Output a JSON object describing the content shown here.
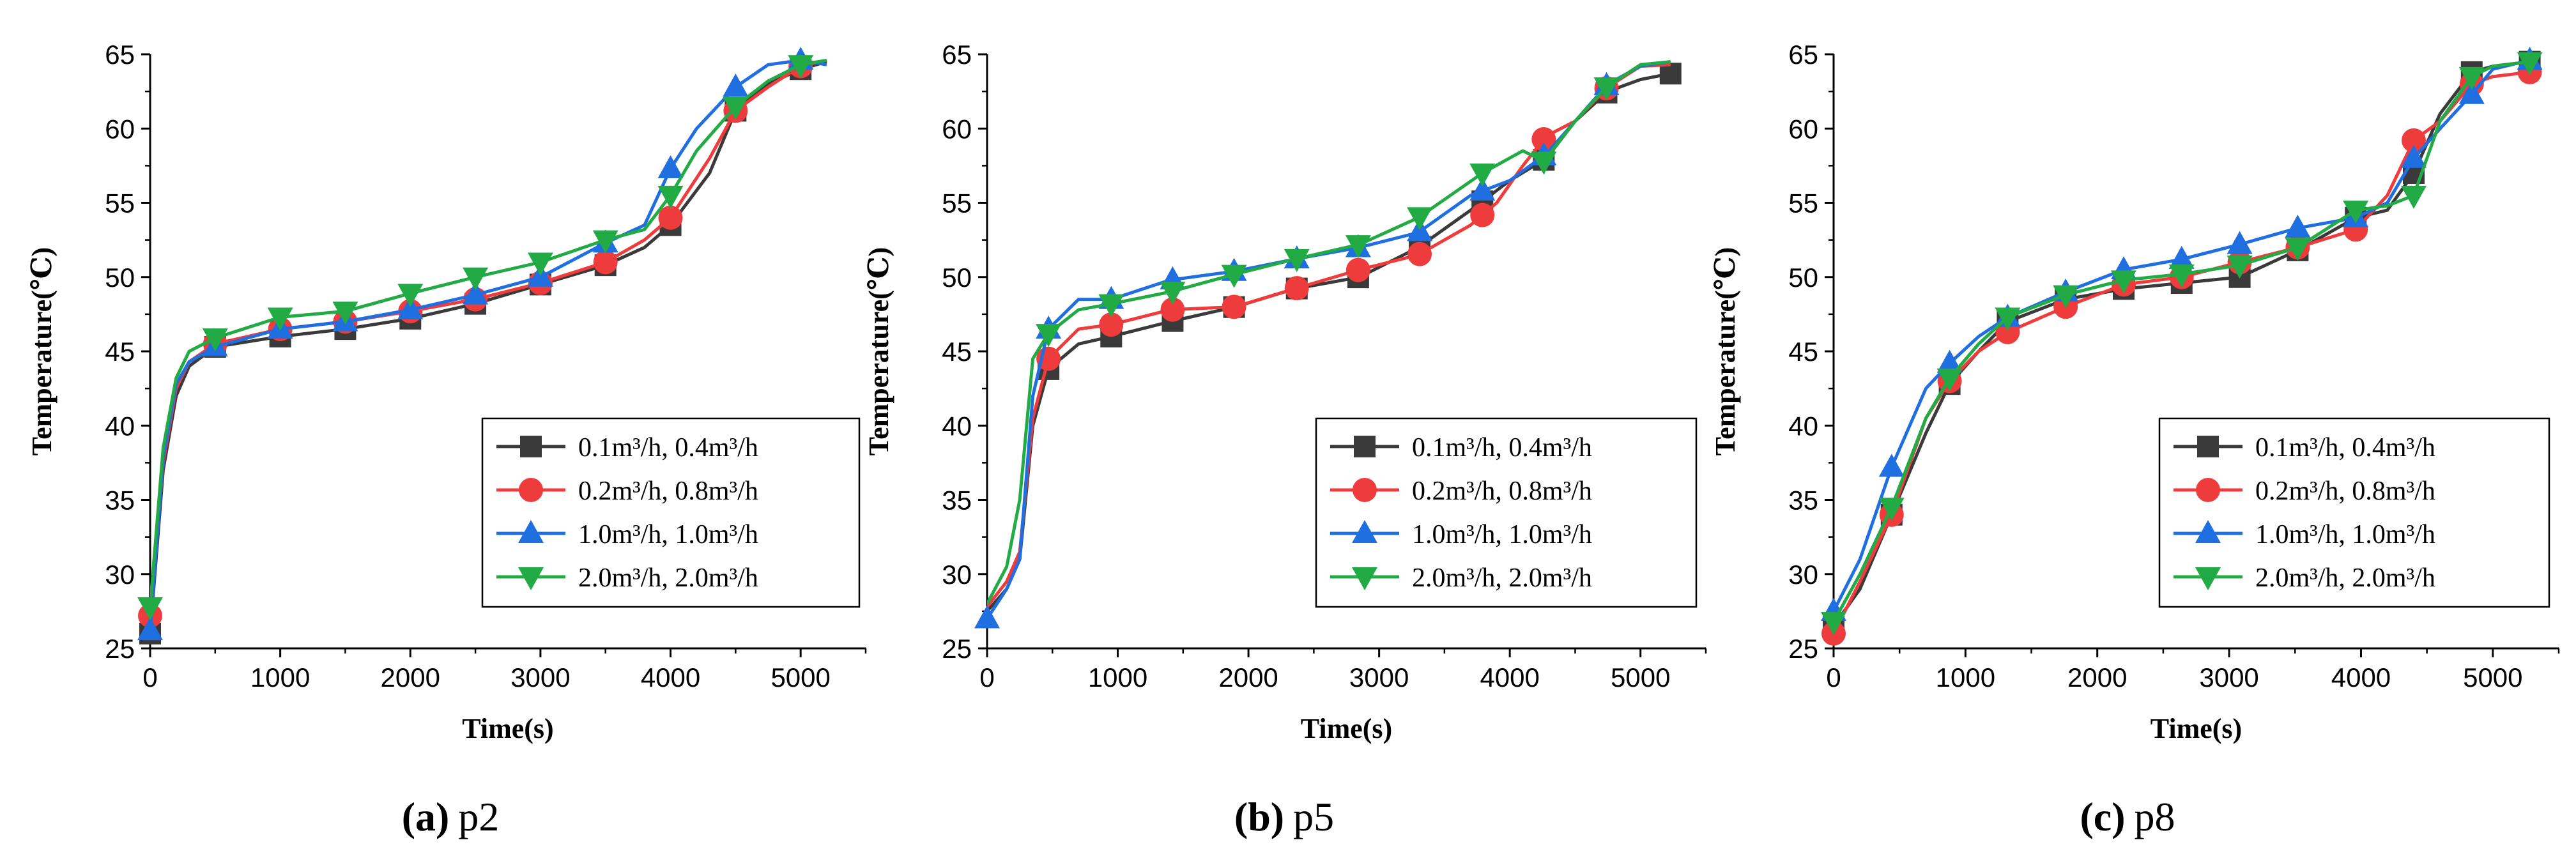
{
  "chart_data": [
    {
      "type": "line",
      "panel": "a",
      "title": "p2",
      "xlabel": "Time(s)",
      "ylabel": "Temperature(℃)",
      "xlim": [
        0,
        5500
      ],
      "ylim": [
        25,
        65
      ],
      "xticks": [
        0,
        1000,
        2000,
        3000,
        4000,
        5000
      ],
      "yticks": [
        25,
        30,
        35,
        40,
        45,
        50,
        55,
        60,
        65
      ],
      "legend_position": "bottom-right",
      "series": [
        {
          "name": "0.1m³/h, 0.4m³/h",
          "color": "#3a3a3a",
          "marker": "square",
          "x": [
            0,
            100,
            200,
            300,
            500,
            1000,
            1500,
            2000,
            2500,
            3000,
            3500,
            3800,
            4000,
            4300,
            4500,
            4750,
            5000,
            5200
          ],
          "y": [
            26,
            37,
            42,
            44,
            45.3,
            46,
            46.5,
            47.2,
            48.2,
            49.5,
            50.8,
            52,
            53.5,
            57,
            61.2,
            63,
            64,
            64.5
          ],
          "marker_x": [
            0,
            500,
            1000,
            1500,
            2000,
            2500,
            3000,
            3500,
            4000,
            4500,
            5000
          ]
        },
        {
          "name": "0.2m³/h, 0.8m³/h",
          "color": "#ee3b3b",
          "marker": "circle",
          "x": [
            0,
            100,
            200,
            300,
            500,
            1000,
            1500,
            2000,
            2500,
            3000,
            3500,
            3800,
            4000,
            4300,
            4500,
            4750,
            5000,
            5200
          ],
          "y": [
            27.2,
            37.5,
            42.5,
            44.3,
            45.5,
            46.5,
            47,
            47.7,
            48.5,
            49.6,
            51,
            52.5,
            54,
            58,
            61.2,
            62.8,
            64.2,
            64.6
          ],
          "marker_x": [
            0,
            500,
            1000,
            1500,
            2000,
            2500,
            3000,
            3500,
            4000,
            4500,
            5000
          ]
        },
        {
          "name": "1.0m³/h, 1.0m³/h",
          "color": "#1f6fe0",
          "marker": "triangle-up",
          "x": [
            0,
            100,
            200,
            300,
            500,
            1000,
            1500,
            2000,
            2500,
            3000,
            3500,
            3800,
            4000,
            4200,
            4500,
            4750,
            5000,
            5200
          ],
          "y": [
            26.2,
            37.8,
            42.8,
            44.3,
            45.3,
            46.5,
            47,
            47.8,
            48.8,
            50,
            52.3,
            53.5,
            57.3,
            60,
            62.8,
            64.3,
            64.6,
            64.3
          ],
          "marker_x": [
            0,
            500,
            1000,
            1500,
            2000,
            2500,
            3000,
            3500,
            4000,
            4500,
            5000
          ]
        },
        {
          "name": "2.0m³/h, 2.0m³/h",
          "color": "#22aa44",
          "marker": "triangle-down",
          "x": [
            0,
            100,
            200,
            300,
            500,
            1000,
            1500,
            2000,
            2500,
            3000,
            3500,
            3800,
            4000,
            4200,
            4500,
            4750,
            5000,
            5200
          ],
          "y": [
            27.8,
            38.5,
            43.2,
            45,
            45.9,
            47.3,
            47.7,
            48.9,
            50,
            51,
            52.5,
            53.2,
            55.5,
            58.5,
            61.5,
            63.2,
            64.3,
            64.6
          ],
          "marker_x": [
            0,
            500,
            1000,
            1500,
            2000,
            2500,
            3000,
            3500,
            4000,
            4500,
            5000
          ]
        }
      ]
    },
    {
      "type": "line",
      "panel": "b",
      "title": "p5",
      "xlabel": "Time(s)",
      "ylabel": "Temperature(℃)",
      "xlim": [
        0,
        5500
      ],
      "ylim": [
        25,
        65
      ],
      "xticks": [
        0,
        1000,
        2000,
        3000,
        4000,
        5000
      ],
      "yticks": [
        25,
        30,
        35,
        40,
        45,
        50,
        55,
        60,
        65
      ],
      "legend_position": "bottom-right",
      "series": [
        {
          "name": "0.1m³/h, 0.4m³/h",
          "color": "#3a3a3a",
          "marker": "square",
          "x": [
            0,
            150,
            250,
            350,
            470,
            700,
            950,
            1400,
            1900,
            2350,
            2850,
            3300,
            3700,
            4000,
            4280,
            4500,
            4750,
            5000,
            5230
          ],
          "y": [
            27.5,
            29,
            31,
            40,
            43.8,
            45.5,
            46,
            47,
            48,
            49.2,
            50,
            52,
            54.5,
            56.5,
            58,
            60.5,
            62.5,
            63.3,
            63.7
          ],
          "marker_x": [
            470,
            950,
            1420,
            1890,
            2370,
            2840,
            3310,
            3790,
            4260,
            4740,
            5230
          ]
        },
        {
          "name": "0.2m³/h, 0.8m³/h",
          "color": "#ee3b3b",
          "marker": "circle",
          "x": [
            0,
            150,
            250,
            350,
            470,
            700,
            950,
            1400,
            1900,
            2350,
            2850,
            3300,
            3700,
            3900,
            4100,
            4280,
            4500,
            4750,
            5000,
            5230
          ],
          "y": [
            27.8,
            29.5,
            31.5,
            40.5,
            44.5,
            46.5,
            46.8,
            47.8,
            48,
            49.2,
            50.5,
            51.5,
            53.5,
            55,
            57.5,
            59.5,
            60.5,
            62.8,
            64.2,
            64.3
          ],
          "marker_x": [
            470,
            950,
            1420,
            1890,
            2370,
            2840,
            3310,
            3790,
            4260,
            4740
          ]
        },
        {
          "name": "1.0m³/h, 1.0m³/h",
          "color": "#1f6fe0",
          "marker": "triangle-up",
          "x": [
            0,
            150,
            250,
            350,
            470,
            700,
            950,
            1400,
            1900,
            2350,
            2850,
            3300,
            3700,
            4000,
            4280,
            4500,
            4750,
            5000,
            5230
          ],
          "y": [
            27,
            29,
            31,
            42,
            46.5,
            48.5,
            48.5,
            49.8,
            50.4,
            51.2,
            52,
            53,
            55.5,
            56.5,
            58.3,
            60.5,
            63,
            64.2,
            64.5
          ],
          "marker_x": [
            0,
            470,
            950,
            1420,
            1890,
            2370,
            2840,
            3310,
            3790,
            4260,
            4740
          ]
        },
        {
          "name": "2.0m³/h, 2.0m³/h",
          "color": "#22aa44",
          "marker": "triangle-down",
          "x": [
            0,
            150,
            250,
            350,
            470,
            700,
            950,
            1400,
            1900,
            2350,
            2850,
            3300,
            3790,
            4100,
            4260,
            4500,
            4740,
            5000,
            5230
          ],
          "y": [
            28,
            30.5,
            35,
            44.5,
            46.2,
            47.8,
            48.2,
            49,
            50.2,
            51.2,
            52.2,
            54,
            57,
            58.5,
            57.8,
            60.5,
            62.8,
            64.3,
            64.5
          ],
          "marker_x": [
            470,
            950,
            1420,
            1890,
            2370,
            2840,
            3310,
            3790,
            4260,
            4740
          ]
        }
      ]
    },
    {
      "type": "line",
      "panel": "c",
      "title": "p8",
      "xlabel": "Time(s)",
      "ylabel": "Temperature(℃)",
      "xlim": [
        0,
        5500
      ],
      "ylim": [
        25,
        65
      ],
      "xticks": [
        0,
        1000,
        2000,
        3000,
        4000,
        5000
      ],
      "yticks": [
        25,
        30,
        35,
        40,
        45,
        50,
        55,
        60,
        65
      ],
      "legend_position": "bottom-right",
      "series": [
        {
          "name": "0.1m³/h, 0.4m³/h",
          "color": "#3a3a3a",
          "marker": "square",
          "x": [
            0,
            200,
            440,
            700,
            880,
            1100,
            1320,
            1760,
            2200,
            2640,
            3080,
            3520,
            3960,
            4200,
            4400,
            4600,
            4840,
            5000,
            5280
          ],
          "y": [
            26.5,
            29,
            34,
            39.5,
            42.8,
            45,
            47,
            48.5,
            49.2,
            49.6,
            50,
            51.8,
            54,
            54.5,
            57,
            61,
            63.8,
            64.2,
            64.5
          ],
          "marker_x": [
            0,
            440,
            880,
            1320,
            1760,
            2200,
            2640,
            3080,
            3520,
            3960,
            4400,
            4840,
            5280
          ]
        },
        {
          "name": "0.2m³/h, 0.8m³/h",
          "color": "#ee3b3b",
          "marker": "circle",
          "x": [
            0,
            200,
            440,
            700,
            880,
            1100,
            1320,
            1760,
            2200,
            2640,
            3080,
            3520,
            3960,
            4200,
            4400,
            4600,
            4840,
            5000,
            5280
          ],
          "y": [
            26,
            29.5,
            34,
            40.5,
            43,
            45,
            46.3,
            48,
            49.5,
            50,
            51,
            52,
            53.2,
            55.5,
            59.2,
            60.5,
            63,
            63.5,
            63.8
          ],
          "marker_x": [
            0,
            440,
            880,
            1320,
            1760,
            2200,
            2640,
            3080,
            3520,
            3960,
            4400,
            4840,
            5280
          ]
        },
        {
          "name": "1.0m³/h, 1.0m³/h",
          "color": "#1f6fe0",
          "marker": "triangle-up",
          "x": [
            0,
            200,
            440,
            700,
            880,
            1100,
            1320,
            1760,
            2200,
            2640,
            3080,
            3520,
            3960,
            4200,
            4400,
            4600,
            4840,
            5000,
            5280
          ],
          "y": [
            27.5,
            31,
            37.2,
            42.5,
            44.2,
            46,
            47.3,
            49,
            50.5,
            51.2,
            52.2,
            53.3,
            54,
            55,
            58,
            60,
            62.3,
            64,
            64.6
          ],
          "marker_x": [
            0,
            440,
            880,
            1320,
            1760,
            2200,
            2640,
            3080,
            3520,
            3960,
            4400,
            4840,
            5280
          ]
        },
        {
          "name": "2.0m³/h, 2.0m³/h",
          "color": "#22aa44",
          "marker": "triangle-down",
          "x": [
            0,
            200,
            440,
            700,
            880,
            1100,
            1320,
            1760,
            2200,
            2640,
            3080,
            3520,
            3960,
            4200,
            4400,
            4600,
            4840,
            5000,
            5280
          ],
          "y": [
            26.8,
            30,
            34.5,
            40.5,
            43.2,
            45.5,
            47.3,
            48.8,
            49.8,
            50.2,
            50.8,
            52,
            54.5,
            54.8,
            55.5,
            60.5,
            63.5,
            64.2,
            64.5
          ],
          "marker_x": [
            0,
            440,
            880,
            1320,
            1760,
            2200,
            2640,
            3080,
            3520,
            3960,
            4400,
            4840,
            5280
          ]
        }
      ]
    }
  ],
  "captions": [
    {
      "letter": "(a)",
      "label": "p2"
    },
    {
      "letter": "(b)",
      "label": "p5"
    },
    {
      "letter": "(c)",
      "label": "p8"
    }
  ]
}
